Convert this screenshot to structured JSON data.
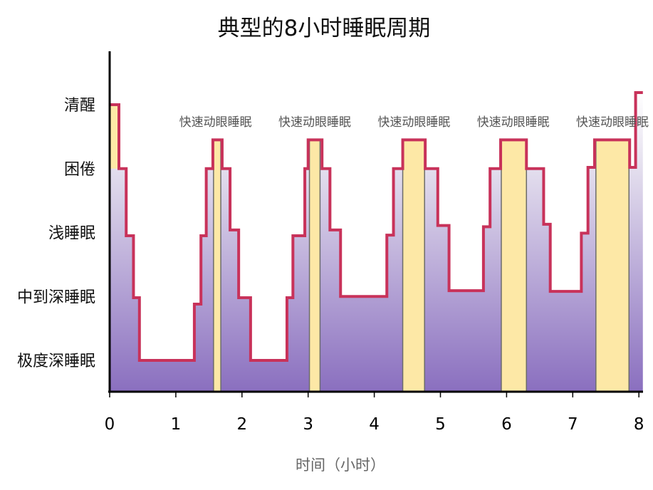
{
  "chart_data": {
    "type": "line",
    "subtype": "step-area",
    "title": "典型的8小时睡眠周期",
    "xlabel": "时间（小时）",
    "ylabel": "",
    "xlim": [
      0,
      8
    ],
    "x_ticks": [
      0,
      1,
      2,
      3,
      4,
      5,
      6,
      7,
      8
    ],
    "y_categories": [
      "极度深睡眠",
      "中到深睡眠",
      "浅睡眠",
      "困倦",
      "清醒"
    ],
    "grid": false,
    "series": [
      {
        "steps": [
          [
            0,
            4.0
          ],
          [
            0.14,
            3.0
          ],
          [
            0.25,
            1.95
          ],
          [
            0.36,
            0.98
          ],
          [
            0.45,
            0
          ],
          [
            1.28,
            0.88
          ],
          [
            1.38,
            1.95
          ],
          [
            1.46,
            3.0
          ],
          [
            1.56,
            3.45
          ],
          [
            1.7,
            3.0
          ],
          [
            1.82,
            2.04
          ],
          [
            1.95,
            0.98
          ],
          [
            2.13,
            0
          ],
          [
            2.68,
            0.98
          ],
          [
            2.77,
            1.95
          ],
          [
            2.95,
            3.0
          ],
          [
            3.0,
            3.45
          ],
          [
            3.21,
            3.0
          ],
          [
            3.33,
            2.04
          ],
          [
            3.49,
            1.0
          ],
          [
            4.19,
            1.96
          ],
          [
            4.29,
            3.0
          ],
          [
            4.43,
            3.45
          ],
          [
            4.77,
            3.0
          ],
          [
            4.96,
            2.11
          ],
          [
            5.13,
            1.09
          ],
          [
            5.65,
            2.09
          ],
          [
            5.75,
            3.0
          ],
          [
            5.91,
            3.45
          ],
          [
            6.3,
            3.0
          ],
          [
            6.56,
            2.13
          ],
          [
            6.66,
            1.08
          ],
          [
            7.13,
            1.99
          ],
          [
            7.23,
            3.02
          ],
          [
            7.33,
            3.45
          ],
          [
            7.86,
            3.02
          ],
          [
            7.95,
            4.19
          ]
        ],
        "end": 8.06
      }
    ],
    "awake_band": {
      "range": [
        0,
        0.14
      ],
      "from_level": 3.0,
      "to_level": 4.0
    },
    "rem_periods": [
      [
        1.57,
        1.68
      ],
      [
        3.02,
        3.18
      ],
      [
        4.43,
        4.76
      ],
      [
        5.92,
        6.3
      ],
      [
        7.35,
        7.85
      ]
    ],
    "annotations": [
      {
        "text": "快速动眼睡眠",
        "x": 1.6
      },
      {
        "text": "快速动眼睡眠",
        "x": 3.1
      },
      {
        "text": "快速动眼睡眠",
        "x": 4.6
      },
      {
        "text": "快速动眼睡眠",
        "x": 6.1
      },
      {
        "text": "快速动眼睡眠",
        "x": 7.6
      }
    ],
    "colors": {
      "line": "#c8325a",
      "rem": "#fde8a6",
      "fill_top": "#ffffff",
      "fill_bottom": "#8a6fbf",
      "axis": "#000000"
    }
  }
}
